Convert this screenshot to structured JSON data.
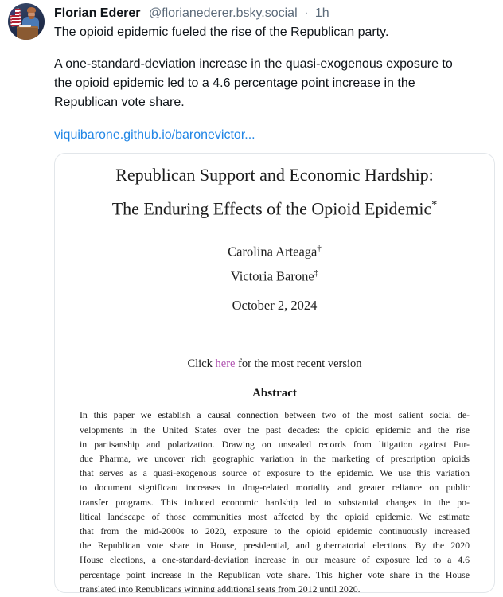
{
  "post": {
    "author_name": "Florian Ederer",
    "author_handle": "@florianederer.bsky.social",
    "separator": "·",
    "timestamp": "1h",
    "avatar_description": "person-at-podium-with-us-flag",
    "text_line1": "The opioid epidemic fueled the rise of the Republican party.",
    "text_line2": "A one-standard-deviation increase in the quasi-exogenous exposure to the opioid epidemic led to a 4.6 percentage point increase in the Republican vote share.",
    "link_text": "viquibarone.github.io/baronevictor..."
  },
  "paper": {
    "title_line1": "Republican Support and Economic Hardship:",
    "title_line2": "The Enduring Effects of the Opioid Epidemic",
    "title_note": "*",
    "authors": [
      {
        "name": "Carolina Arteaga",
        "mark": "†"
      },
      {
        "name": "Victoria Barone",
        "mark": "‡"
      }
    ],
    "date": "October 2, 2024",
    "version_prefix": "Click ",
    "version_link": "here",
    "version_suffix": " for the most recent version",
    "abstract_heading": "Abstract",
    "abstract_lines": [
      "In this paper we establish a causal connection between two of the most salient social de-",
      "velopments in the United States over the past decades: the opioid epidemic and the rise",
      "in partisanship and polarization. Drawing on unsealed records from litigation against Pur-",
      "due Pharma, we uncover rich geographic variation in the marketing of prescription opioids",
      "that serves as a quasi-exogenous source of exposure to the epidemic. We use this variation",
      "to document significant increases in drug-related mortality and greater reliance on public",
      "transfer programs. This induced economic hardship led to substantial changes in the po-",
      "litical landscape of those communities most affected by the opioid epidemic. We estimate",
      "that from the mid-2000s to 2020, exposure to the opioid epidemic continuously increased",
      "the Republican vote share in House, presidential, and gubernatorial elections. By the 2020",
      "House elections, a one-standard-deviation increase in our measure of exposure led to a 4.6",
      "percentage point increase in the Republican vote share. This higher vote share in the House",
      "translated into Republicans winning additional seats from 2012 until 2020."
    ]
  },
  "colors": {
    "link_blue": "#1f85e5",
    "version_link_magenta": "#b052b0",
    "handle_gray": "#5c6b7a",
    "text_dark": "#0f1419",
    "card_border": "#e2e6ea"
  }
}
